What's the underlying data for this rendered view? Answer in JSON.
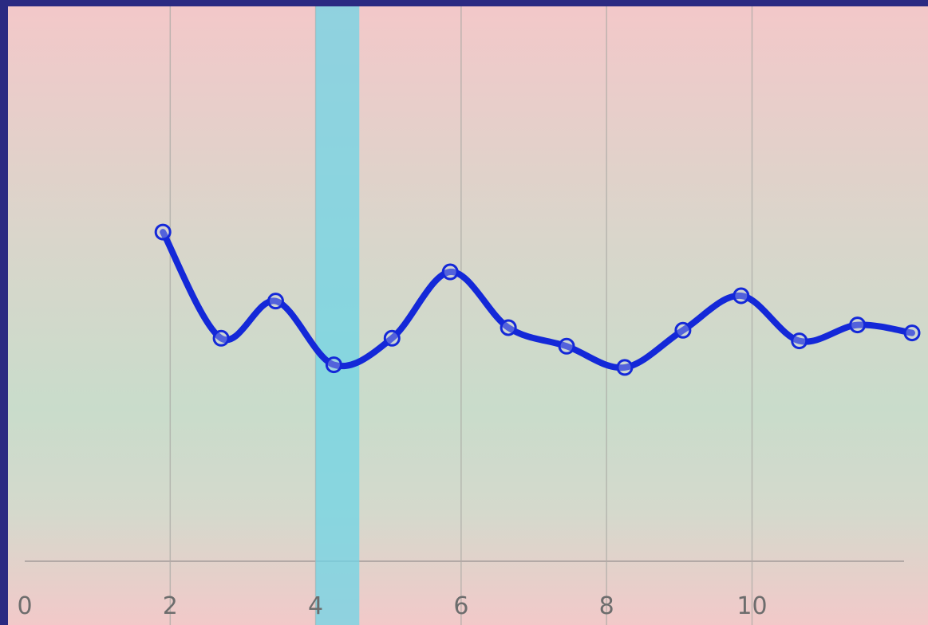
{
  "chart_data": {
    "type": "line",
    "title": "",
    "xlabel": "",
    "ylabel": "",
    "xlim": [
      0,
      12.2
    ],
    "ylim": [
      0,
      10
    ],
    "x_ticks": [
      "0",
      "2",
      "4",
      "6",
      "8",
      "10"
    ],
    "x_tick_values": [
      0,
      2,
      4,
      6,
      8,
      10
    ],
    "grid": "vertical",
    "line_color": "#1428d8",
    "highlight_color": "#6fd4e6",
    "highlight_range": [
      4.0,
      4.6
    ],
    "background_top_color": "#f3c8c9",
    "background_mid_color": "#c9dccb",
    "series": [
      {
        "x": [
          1.9,
          2.7,
          3.45,
          4.25,
          5.05,
          5.85,
          6.65,
          7.45,
          8.25,
          9.05,
          9.85,
          10.65,
          11.45,
          12.2
        ],
        "y": [
          6.2,
          4.2,
          4.9,
          3.7,
          4.2,
          5.45,
          4.4,
          4.05,
          3.65,
          4.35,
          5.0,
          4.15,
          4.45,
          4.3
        ]
      }
    ]
  }
}
